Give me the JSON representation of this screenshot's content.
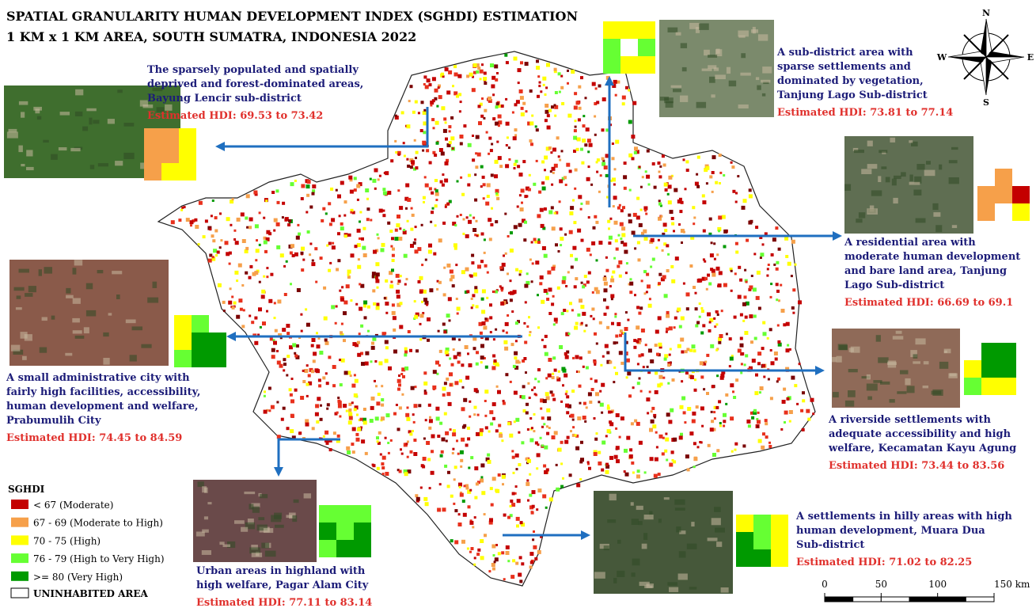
{
  "title": {
    "line1": "SPATIAL GRANULARITY HUMAN DEVELOPMENT INDEX (SGHDI) ESTIMATION",
    "line2": "1 KM x 1 KM AREA, SOUTH SUMATRA, INDONESIA 2022"
  },
  "callouts": [
    {
      "lines": [
        "The sparsely populated and spatially",
        "deprived and forest-dominated areas,",
        "Bayung Lencir sub-district"
      ],
      "hdi": "Estimated HDI: 69.53 to 73.42"
    },
    {
      "lines": [
        "A sub-district area with",
        "sparse settlements and",
        "dominated by vegetation,",
        "Tanjung Lago Sub-district"
      ],
      "hdi": "Estimated HDI: 73.81 to 77.14"
    },
    {
      "lines": [
        "A residential area with",
        "moderate human development",
        "and bare land area, Tanjung",
        "Lago Sub-district"
      ],
      "hdi": "Estimated HDI: 66.69 to 69.1"
    },
    {
      "lines": [
        "A small administrative city with",
        "fairly high facilities, accessibility,",
        "human development and welfare,",
        "Prabumulih City"
      ],
      "hdi": "Estimated HDI: 74.45 to 84.59"
    },
    {
      "lines": [
        "A riverside settlements with",
        "adequate accessibility and high",
        "welfare, Kecamatan Kayu Agung"
      ],
      "hdi": "Estimated HDI: 73.44 to 83.56"
    },
    {
      "lines": [
        "Urban areas in highland with",
        "high welfare, Pagar Alam City"
      ],
      "hdi": "Estimated HDI: 77.11 to 83.14"
    },
    {
      "lines": [
        "A settlements in hilly areas with high",
        "human development, Muara Dua",
        "Sub-district"
      ],
      "hdi": "Estimated HDI: 71.02 to 82.25"
    }
  ],
  "compass": {
    "north": "N",
    "east": "E",
    "south": "S",
    "west": "W"
  },
  "legend": {
    "title": "SGHDI",
    "items": [
      {
        "label": "< 67 (Moderate)",
        "color": "#c40000"
      },
      {
        "label": "67 - 69 (Moderate to High)",
        "color": "#f6a04a"
      },
      {
        "label": "70 - 75 (High)",
        "color": "#ffff00"
      },
      {
        "label": "76 - 79 (High to Very High)",
        "color": "#66ff33"
      },
      {
        "label": ">= 80 (Very High)",
        "color": "#009a00"
      }
    ],
    "uninhabited": "UNINHABITED AREA"
  },
  "scale_bar": {
    "ticks": [
      0,
      50,
      100,
      {
        "value": 150,
        "label": "150 km"
      }
    ]
  }
}
